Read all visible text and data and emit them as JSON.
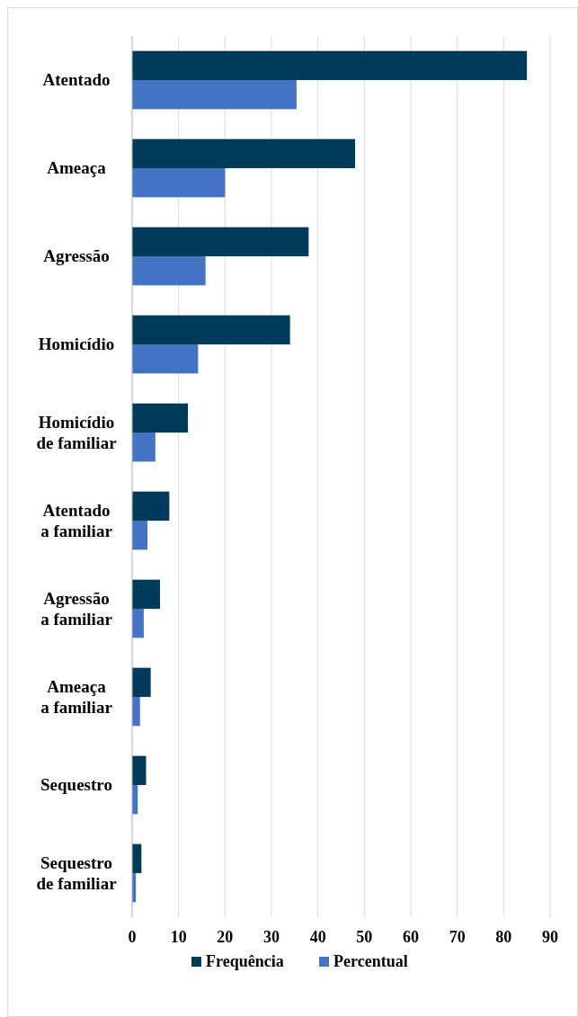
{
  "chart_data": {
    "type": "bar",
    "orientation": "horizontal",
    "categories": [
      "Atentado",
      "Ameaça",
      "Agressão",
      "Homicídio",
      "Homicídio de familiar",
      "Atentado a familiar",
      "Agressão a familiar",
      "Ameaça a familiar",
      "Sequestro",
      "Sequestro de familiar"
    ],
    "series": [
      {
        "name": "Frequência",
        "color": "#003b5c",
        "values": [
          85,
          48,
          38,
          34,
          12,
          8,
          6,
          4,
          3,
          2
        ]
      },
      {
        "name": "Percentual",
        "color": "#4472c4",
        "values": [
          35.4,
          20,
          15.8,
          14.2,
          5,
          3.3,
          2.5,
          1.7,
          1.2,
          0.8
        ]
      }
    ],
    "xlim": [
      0,
      90
    ],
    "xticks": [
      0,
      10,
      20,
      30,
      40,
      50,
      60,
      70,
      80,
      90
    ],
    "grid": "x",
    "legend": "bottom"
  }
}
